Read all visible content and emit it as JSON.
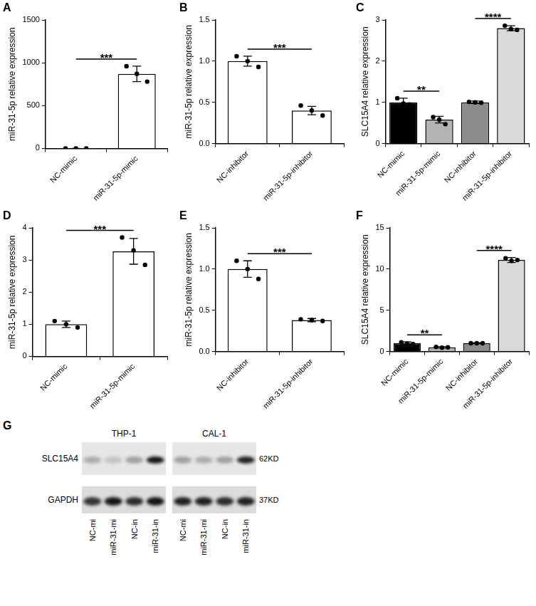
{
  "chart_data": [
    {
      "type": "bar",
      "title": "A",
      "ylabel": "miR-31-5p relative expression",
      "categories": [
        "NC-mimic",
        "miR-31-5p-mimic"
      ],
      "values": [
        1,
        870
      ],
      "errors": [
        0.1,
        90
      ],
      "points": [
        [
          1,
          1,
          1
        ],
        [
          960,
          870,
          780
        ]
      ],
      "color": "#ffffff",
      "ylim": [
        0,
        1500
      ],
      "yticks": [
        0,
        500,
        1000,
        1500
      ],
      "grid": false,
      "annotations": [
        {
          "text": "***",
          "between": [
            "NC-mimic",
            "miR-31-5p-mimic"
          ]
        }
      ]
    },
    {
      "type": "bar",
      "title": "B",
      "ylabel": "miR-31-5p relative expression",
      "categories": [
        "NC-inhibitor",
        "miR-31-5p-inhibitor"
      ],
      "values": [
        1.0,
        0.4
      ],
      "errors": [
        0.06,
        0.05
      ],
      "points": [
        [
          1.06,
          1.0,
          0.93
        ],
        [
          0.46,
          0.4,
          0.34
        ]
      ],
      "color": "#ffffff",
      "ylim": [
        0,
        1.5
      ],
      "yticks": [
        {
          "value": 0,
          "label": "0.0"
        },
        0.5,
        {
          "value": 1,
          "label": "1.0"
        },
        1.5
      ],
      "grid": false,
      "annotations": [
        {
          "text": "***",
          "between": [
            "NC-inhibitor",
            "miR-31-5p-inhibitor"
          ]
        }
      ]
    },
    {
      "type": "bar",
      "title": "C",
      "ylabel": "SLC15A4 relative expression",
      "categories": [
        "NC-mimic",
        "miR-31-5p-mimic",
        "NC-inhibitor",
        "miR-31-5p-inhibitor"
      ],
      "values": [
        1.0,
        0.58,
        1.0,
        2.8
      ],
      "errors": [
        0.1,
        0.08,
        0.03,
        0.06
      ],
      "points": [
        [
          1.1,
          0.97,
          0.95
        ],
        [
          0.64,
          0.58,
          0.47
        ],
        [
          1.01,
          1.0,
          0.99
        ],
        [
          2.86,
          2.78,
          2.76
        ]
      ],
      "colors": [
        "#000000",
        "#b3b3b3",
        "#8c8c8c",
        "#d9d9d9"
      ],
      "ylim": [
        0,
        3
      ],
      "yticks": [
        0,
        1,
        2,
        3
      ],
      "grid": false,
      "annotations": [
        {
          "text": "**",
          "between": [
            "NC-mimic",
            "miR-31-5p-mimic"
          ]
        },
        {
          "text": "****",
          "between": [
            "NC-inhibitor",
            "miR-31-5p-inhibitor"
          ]
        }
      ]
    },
    {
      "type": "bar",
      "title": "D",
      "ylabel": "miR-31-5p relative expression",
      "categories": [
        "NC-mimic",
        "miR-31-5p-mimic"
      ],
      "values": [
        1.0,
        3.27
      ],
      "errors": [
        0.1,
        0.4
      ],
      "points": [
        [
          1.1,
          1.0,
          0.9
        ],
        [
          3.7,
          3.3,
          2.85
        ]
      ],
      "color": "#ffffff",
      "ylim": [
        0,
        4
      ],
      "yticks": [
        0,
        1,
        2,
        3,
        4
      ],
      "grid": false,
      "annotations": [
        {
          "text": "***",
          "between": [
            "NC-mimic",
            "miR-31-5p-mimic"
          ]
        }
      ]
    },
    {
      "type": "bar",
      "title": "E",
      "ylabel": "miR-31-5p relative expression",
      "categories": [
        "NC-inhibitor",
        "miR-31-5p-inhibitor"
      ],
      "values": [
        1.0,
        0.38
      ],
      "errors": [
        0.1,
        0.02
      ],
      "points": [
        [
          1.1,
          1.0,
          0.88
        ],
        [
          0.39,
          0.38,
          0.37
        ]
      ],
      "color": "#ffffff",
      "ylim": [
        0,
        1.5
      ],
      "yticks": [
        {
          "value": 0,
          "label": "0.0"
        },
        0.5,
        {
          "value": 1,
          "label": "1.0"
        },
        1.5
      ],
      "grid": false,
      "annotations": [
        {
          "text": "***",
          "between": [
            "NC-inhibitor",
            "miR-31-5p-inhibitor"
          ]
        }
      ]
    },
    {
      "type": "bar",
      "title": "F",
      "ylabel": "SLC15A4 relative expression",
      "categories": [
        "NC-mimic",
        "miR-31-5p-mimic",
        "NC-inhibitor",
        "miR-31-5p-inhibitor"
      ],
      "values": [
        1.0,
        0.5,
        1.0,
        11.1
      ],
      "errors": [
        0.15,
        0.08,
        0.05,
        0.3
      ],
      "points": [
        [
          1.1,
          0.95,
          0.9
        ],
        [
          0.55,
          0.45,
          0.5
        ],
        [
          1.0,
          1.0,
          1.0
        ],
        [
          11.3,
          11.0,
          11.1
        ]
      ],
      "colors": [
        "#000000",
        "#b3b3b3",
        "#8c8c8c",
        "#d9d9d9"
      ],
      "ylim": [
        0,
        15
      ],
      "yticks": [
        0,
        5,
        10,
        15
      ],
      "grid": false,
      "annotations": [
        {
          "text": "**",
          "between": [
            "NC-mimic",
            "miR-31-5p-mimic"
          ]
        },
        {
          "text": "****",
          "between": [
            "NC-inhibitor",
            "miR-31-5p-inhibitor"
          ]
        }
      ]
    }
  ],
  "blot": {
    "title": "G",
    "cell_lines": [
      "THP-1",
      "CAL-1"
    ],
    "lanes": [
      "NC-mi",
      "miR-31-mi",
      "NC-in",
      "miR-31-in"
    ],
    "rows": [
      {
        "label": "SLC15A4",
        "size": "62KD",
        "bands": [
          [
            0.25,
            0.15,
            0.3,
            0.9
          ],
          [
            0.3,
            0.25,
            0.3,
            0.85
          ]
        ]
      },
      {
        "label": "GAPDH",
        "size": "37KD",
        "bands": [
          [
            0.75,
            0.9,
            0.8,
            0.9
          ],
          [
            0.85,
            0.85,
            0.8,
            0.85
          ]
        ]
      }
    ]
  }
}
